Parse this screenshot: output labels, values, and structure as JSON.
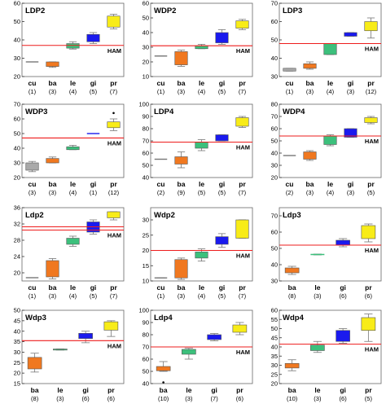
{
  "colors": {
    "cu": "#a9a9a9",
    "ba": "#f07820",
    "le": "#3cc07c",
    "gi": "#1a1aee",
    "pr": "#f8ec18",
    "ham": "#ee1c1c",
    "frame": "#666666"
  },
  "chart_data": [
    {
      "type": "box",
      "title": "LDP2",
      "ylim": [
        20,
        60
      ],
      "yticks": [
        20,
        30,
        40,
        50,
        60
      ],
      "ham": 37,
      "ham_label": "HAM",
      "double": false,
      "boxes": [
        {
          "cat": "cu",
          "n": "(1)",
          "min": 28,
          "q1": 28,
          "q3": 28,
          "max": 28
        },
        {
          "cat": "ba",
          "n": "(3)",
          "min": 25,
          "q1": 25.5,
          "q3": 28,
          "max": 28
        },
        {
          "cat": "le",
          "n": "(4)",
          "min": 35,
          "q1": 35.5,
          "q3": 38,
          "max": 39
        },
        {
          "cat": "gi",
          "n": "(5)",
          "min": 38,
          "q1": 39,
          "q3": 43,
          "max": 44
        },
        {
          "cat": "pr",
          "n": "(7)",
          "min": 46,
          "q1": 47,
          "q3": 53,
          "max": 54
        }
      ]
    },
    {
      "type": "box",
      "title": "WDP2",
      "ylim": [
        10,
        60
      ],
      "yticks": [
        10,
        20,
        30,
        40,
        50,
        60
      ],
      "ham": 31,
      "ham_label": "HAM",
      "double": false,
      "boxes": [
        {
          "cat": "cu",
          "n": "(1)",
          "min": 24,
          "q1": 24,
          "q3": 24,
          "max": 24
        },
        {
          "cat": "ba",
          "n": "(3)",
          "min": 17,
          "q1": 18,
          "q3": 27,
          "max": 28
        },
        {
          "cat": "le",
          "n": "(4)",
          "min": 29,
          "q1": 29,
          "q3": 31,
          "max": 32
        },
        {
          "cat": "gi",
          "n": "(5)",
          "min": 32,
          "q1": 33,
          "q3": 40,
          "max": 42
        },
        {
          "cat": "pr",
          "n": "(7)",
          "min": 42,
          "q1": 43,
          "q3": 48,
          "max": 49
        }
      ]
    },
    {
      "type": "box",
      "title": "LDP3",
      "ylim": [
        30,
        70
      ],
      "yticks": [
        30,
        40,
        50,
        60,
        70
      ],
      "ham": 48,
      "ham_label": "HAM",
      "double": false,
      "boxes": [
        {
          "cat": "cu",
          "n": "(1)",
          "min": 33,
          "q1": 33,
          "q3": 34.5,
          "max": 34.5
        },
        {
          "cat": "ba",
          "n": "(3)",
          "min": 34,
          "q1": 34.5,
          "q3": 37,
          "max": 38
        },
        {
          "cat": "le",
          "n": "(4)",
          "min": 42,
          "q1": 42,
          "q3": 48,
          "max": 48
        },
        {
          "cat": "gi",
          "n": "(3)",
          "min": 52,
          "q1": 52,
          "q3": 54,
          "max": 54
        },
        {
          "cat": "pr",
          "n": "(12)",
          "min": 51,
          "q1": 55,
          "q3": 60,
          "max": 62
        }
      ]
    },
    {
      "type": "box",
      "title": "WDP3",
      "ylim": [
        20,
        70
      ],
      "yticks": [
        20,
        30,
        40,
        50,
        60,
        70
      ],
      "ham": 47,
      "ham_label": "HAM",
      "double": false,
      "boxes": [
        {
          "cat": "cu",
          "n": "(3)",
          "min": 24,
          "q1": 25,
          "q3": 30,
          "max": 31
        },
        {
          "cat": "ba",
          "n": "(3)",
          "min": 30,
          "q1": 30,
          "q3": 33,
          "max": 34
        },
        {
          "cat": "le",
          "n": "(4)",
          "min": 39,
          "q1": 39,
          "q3": 41,
          "max": 42
        },
        {
          "cat": "gi",
          "n": "(1)",
          "min": 50,
          "q1": 50,
          "q3": 50,
          "max": 50
        },
        {
          "cat": "pr",
          "n": "(12)",
          "min": 52,
          "q1": 54,
          "q3": 58,
          "max": 60,
          "outliers": [
            64
          ]
        }
      ]
    },
    {
      "type": "box",
      "title": "LDP4",
      "ylim": [
        40,
        100
      ],
      "yticks": [
        40,
        50,
        60,
        70,
        80,
        90,
        100
      ],
      "ham": 69,
      "ham_label": "HAM",
      "double": false,
      "boxes": [
        {
          "cat": "cu",
          "n": "(2)",
          "min": 55,
          "q1": 55,
          "q3": 55,
          "max": 55
        },
        {
          "cat": "ba",
          "n": "(9)",
          "min": 48,
          "q1": 51,
          "q3": 57,
          "max": 61
        },
        {
          "cat": "le",
          "n": "(5)",
          "min": 62,
          "q1": 64,
          "q3": 69,
          "max": 71
        },
        {
          "cat": "gi",
          "n": "(5)",
          "min": 70,
          "q1": 70,
          "q3": 75,
          "max": 75
        },
        {
          "cat": "pr",
          "n": "(7)",
          "min": 81,
          "q1": 82,
          "q3": 89,
          "max": 90
        }
      ]
    },
    {
      "type": "box",
      "title": "WDP4",
      "ylim": [
        20,
        80
      ],
      "yticks": [
        20,
        30,
        40,
        50,
        60,
        70,
        80
      ],
      "ham": 54,
      "ham_label": "HAM",
      "double": false,
      "boxes": [
        {
          "cat": "cu",
          "n": "(2)",
          "min": 38,
          "q1": 38,
          "q3": 38,
          "max": 38
        },
        {
          "cat": "ba",
          "n": "(3)",
          "min": 34,
          "q1": 35,
          "q3": 41,
          "max": 42
        },
        {
          "cat": "le",
          "n": "(4)",
          "min": 46,
          "q1": 47,
          "q3": 54,
          "max": 55
        },
        {
          "cat": "gi",
          "n": "(3)",
          "min": 53,
          "q1": 53,
          "q3": 60,
          "max": 60
        },
        {
          "cat": "pr",
          "n": "(5)",
          "min": 64,
          "q1": 65,
          "q3": 69,
          "max": 70
        }
      ]
    },
    {
      "type": "box",
      "title": "Ldp2",
      "ylim": [
        18,
        36
      ],
      "yticks": [
        20,
        24,
        28,
        32,
        36
      ],
      "ham": 30.5,
      "ham2": 31.3,
      "ham_label": "HAM",
      "double": true,
      "boxes": [
        {
          "cat": "cu",
          "n": "(1)",
          "min": 18.8,
          "q1": 18.8,
          "q3": 18.8,
          "max": 18.8
        },
        {
          "cat": "ba",
          "n": "(3)",
          "min": 18.5,
          "q1": 19,
          "q3": 23,
          "max": 23.5
        },
        {
          "cat": "le",
          "n": "(4)",
          "min": 26.5,
          "q1": 27,
          "q3": 28.5,
          "max": 29
        },
        {
          "cat": "gi",
          "n": "(5)",
          "min": 29.5,
          "q1": 30,
          "q3": 32.5,
          "max": 33
        },
        {
          "cat": "pr",
          "n": "(7)",
          "min": 33,
          "q1": 33.5,
          "q3": 35,
          "max": 35
        }
      ]
    },
    {
      "type": "box",
      "title": "Wdp2",
      "ylim": [
        10,
        34
      ],
      "yticks": [
        10,
        15,
        20,
        25,
        30
      ],
      "ham": 20,
      "ham_label": "HAM",
      "double": false,
      "boxes": [
        {
          "cat": "cu",
          "n": "(1)",
          "min": 11,
          "q1": 11,
          "q3": 11,
          "max": 11
        },
        {
          "cat": "ba",
          "n": "(3)",
          "min": 10.5,
          "q1": 11,
          "q3": 17,
          "max": 17.5
        },
        {
          "cat": "le",
          "n": "(4)",
          "min": 16.5,
          "q1": 17.5,
          "q3": 19.5,
          "max": 20.5
        },
        {
          "cat": "gi",
          "n": "(5)",
          "min": 21,
          "q1": 22,
          "q3": 24.5,
          "max": 25.5
        },
        {
          "cat": "pr",
          "n": "(7)",
          "min": 24,
          "q1": 24,
          "q3": 30,
          "max": 30
        }
      ]
    },
    {
      "type": "box",
      "title": "Ldp3",
      "ylim": [
        30,
        75
      ],
      "yticks": [
        30,
        40,
        50,
        60,
        70
      ],
      "ham": 52,
      "ham_label": "HAM",
      "double": false,
      "boxes": [
        {
          "cat": "ba",
          "n": "(8)",
          "min": 34,
          "q1": 35,
          "q3": 38,
          "max": 39
        },
        {
          "cat": "le",
          "n": "(3)",
          "min": 46,
          "q1": 46,
          "q3": 46.5,
          "max": 46.5
        },
        {
          "cat": "gi",
          "n": "(6)",
          "min": 51,
          "q1": 52,
          "q3": 55,
          "max": 56
        },
        {
          "cat": "pr",
          "n": "(6)",
          "min": 54,
          "q1": 56,
          "q3": 64,
          "max": 65
        }
      ]
    },
    {
      "type": "box",
      "title": "Wdp3",
      "ylim": [
        15,
        50
      ],
      "yticks": [
        15,
        20,
        25,
        30,
        35,
        40,
        45,
        50
      ],
      "ham": 35.5,
      "ham_label": "HAM",
      "double": false,
      "boxes": [
        {
          "cat": "ba",
          "n": "(8)",
          "min": 20.5,
          "q1": 22,
          "q3": 27.5,
          "max": 29.5
        },
        {
          "cat": "le",
          "n": "(3)",
          "min": 31,
          "q1": 31,
          "q3": 31.5,
          "max": 31.5
        },
        {
          "cat": "gi",
          "n": "(6)",
          "min": 34.5,
          "q1": 36.5,
          "q3": 39,
          "max": 40
        },
        {
          "cat": "pr",
          "n": "(6)",
          "min": 37.5,
          "q1": 40.5,
          "q3": 44.5,
          "max": 45
        }
      ]
    },
    {
      "type": "box",
      "title": "Ldp4",
      "ylim": [
        40,
        100
      ],
      "yticks": [
        40,
        50,
        60,
        70,
        80,
        90,
        100
      ],
      "ham": 70,
      "ham_label": "HAM",
      "double": false,
      "boxes": [
        {
          "cat": "ba",
          "n": "(10)",
          "min": 50,
          "q1": 50.5,
          "q3": 54,
          "max": 58,
          "outliers": [
            41
          ]
        },
        {
          "cat": "le",
          "n": "(3)",
          "min": 60,
          "q1": 64,
          "q3": 68,
          "max": 69
        },
        {
          "cat": "gi",
          "n": "(7)",
          "min": 75,
          "q1": 76,
          "q3": 80,
          "max": 81
        },
        {
          "cat": "pr",
          "n": "(6)",
          "min": 80,
          "q1": 82,
          "q3": 88,
          "max": 90
        }
      ]
    },
    {
      "type": "box",
      "title": "Wdp4",
      "ylim": [
        20,
        60
      ],
      "yticks": [
        20,
        25,
        30,
        35,
        40,
        45,
        50,
        55,
        60
      ],
      "ham": 41.5,
      "ham_label": "HAM",
      "double": false,
      "boxes": [
        {
          "cat": "ba",
          "n": "(10)",
          "min": 27,
          "q1": 28.5,
          "q3": 31,
          "max": 33
        },
        {
          "cat": "le",
          "n": "(3)",
          "min": 37,
          "q1": 38,
          "q3": 41,
          "max": 43
        },
        {
          "cat": "gi",
          "n": "(6)",
          "min": 42,
          "q1": 43,
          "q3": 49,
          "max": 50
        },
        {
          "cat": "pr",
          "n": "(5)",
          "min": 43,
          "q1": 49,
          "q3": 56,
          "max": 58
        }
      ]
    }
  ]
}
